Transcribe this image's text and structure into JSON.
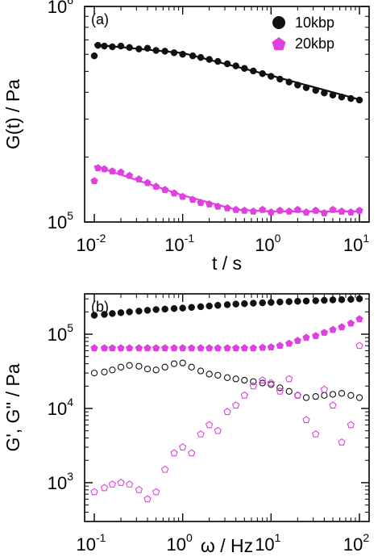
{
  "colors": {
    "series_10kbp": "#111111",
    "series_20kbp": "#e040e0"
  },
  "chart_data": [
    {
      "type": "scatter",
      "panel_label": "(a)",
      "xlabel": "t / s",
      "ylabel": "G(t) / Pa",
      "xscale": "log",
      "yscale": "log",
      "xlim": [
        0.01,
        10
      ],
      "ylim": [
        100000,
        1000000
      ],
      "x_ticks": [
        {
          "value": 0.01,
          "base": "10",
          "exp": "-2"
        },
        {
          "value": 0.1,
          "base": "10",
          "exp": "-1"
        },
        {
          "value": 1,
          "base": "10",
          "exp": "0"
        },
        {
          "value": 10,
          "base": "10",
          "exp": "1"
        }
      ],
      "y_ticks": [
        {
          "value": 100000,
          "base": "10",
          "exp": "5"
        },
        {
          "value": 1000000,
          "base": "10",
          "exp": "6"
        }
      ],
      "legend_position": "top-right",
      "grid": false,
      "series": [
        {
          "name": "10kbp",
          "marker": "circle-filled",
          "color": "#111111",
          "x": [
            0.01,
            0.011,
            0.013,
            0.016,
            0.02,
            0.025,
            0.032,
            0.04,
            0.05,
            0.063,
            0.08,
            0.1,
            0.13,
            0.16,
            0.2,
            0.25,
            0.32,
            0.4,
            0.5,
            0.63,
            0.8,
            1.0,
            1.26,
            1.6,
            2.0,
            2.5,
            3.2,
            4.0,
            5.0,
            6.3,
            8.0,
            10.0
          ],
          "y": [
            590000,
            660000,
            655000,
            650000,
            655000,
            645000,
            635000,
            640000,
            625000,
            620000,
            610000,
            600000,
            590000,
            580000,
            568000,
            556000,
            542000,
            530000,
            516000,
            502000,
            488000,
            474000,
            460000,
            446000,
            432000,
            420000,
            408000,
            397000,
            388000,
            380000,
            374000,
            368000
          ],
          "fit_line": {
            "x": [
              0.01,
              0.1,
              1,
              10
            ],
            "y": [
              665000,
              608000,
              478000,
              370000
            ]
          }
        },
        {
          "name": "20kbp",
          "marker": "pentagon-filled",
          "color": "#e040e0",
          "x": [
            0.01,
            0.011,
            0.013,
            0.016,
            0.02,
            0.025,
            0.032,
            0.04,
            0.05,
            0.063,
            0.08,
            0.1,
            0.13,
            0.16,
            0.2,
            0.25,
            0.32,
            0.4,
            0.5,
            0.63,
            0.8,
            1.0,
            1.26,
            1.6,
            2.0,
            2.5,
            3.2,
            4.0,
            5.0,
            6.3,
            8.0,
            10.0
          ],
          "y": [
            155000,
            178000,
            176000,
            172000,
            170000,
            164000,
            158000,
            152000,
            146000,
            141000,
            136000,
            131000,
            127000,
            123000,
            121000,
            118000,
            116000,
            114000,
            113000,
            112000,
            114000,
            111000,
            113000,
            112000,
            114000,
            111000,
            113000,
            110000,
            114000,
            112000,
            111000,
            113000
          ],
          "fit_line": {
            "x": [
              0.01,
              0.1,
              0.4,
              1,
              10
            ],
            "y": [
              182000,
              133000,
              114000,
              112000,
              112000
            ]
          }
        }
      ]
    },
    {
      "type": "scatter",
      "panel_label": "(b)",
      "xlabel": "ω / Hz",
      "ylabel": "G', G'' / Pa",
      "xscale": "log",
      "yscale": "log",
      "xlim": [
        0.1,
        100
      ],
      "ylim": [
        300,
        350000
      ],
      "x_ticks": [
        {
          "value": 0.1,
          "base": "10",
          "exp": "-1"
        },
        {
          "value": 1,
          "base": "10",
          "exp": "0"
        },
        {
          "value": 10,
          "base": "10",
          "exp": "1"
        },
        {
          "value": 100,
          "base": "10",
          "exp": "2"
        }
      ],
      "y_ticks": [
        {
          "value": 1000,
          "base": "10",
          "exp": "3"
        },
        {
          "value": 10000,
          "base": "10",
          "exp": "4"
        },
        {
          "value": 100000,
          "base": "10",
          "exp": "5"
        }
      ],
      "grid": false,
      "series": [
        {
          "marker": "circle-filled",
          "color": "#111111",
          "x": [
            0.1,
            0.13,
            0.16,
            0.2,
            0.25,
            0.32,
            0.4,
            0.5,
            0.63,
            0.8,
            1.0,
            1.26,
            1.6,
            2.0,
            2.5,
            3.2,
            4.0,
            5.0,
            6.3,
            8.0,
            10,
            12.6,
            16,
            20,
            25,
            32,
            40,
            50,
            63,
            80,
            100
          ],
          "y": [
            180000,
            185000,
            190000,
            195000,
            200000,
            205000,
            210000,
            215000,
            218000,
            222000,
            225000,
            230000,
            235000,
            240000,
            245000,
            250000,
            255000,
            258000,
            262000,
            265000,
            268000,
            272000,
            275000,
            278000,
            280000,
            283000,
            286000,
            290000,
            292000,
            295000,
            300000
          ]
        },
        {
          "marker": "circle-open",
          "color": "#111111",
          "x": [
            0.1,
            0.13,
            0.16,
            0.2,
            0.25,
            0.32,
            0.4,
            0.5,
            0.63,
            0.8,
            1.0,
            1.26,
            1.6,
            2.0,
            2.5,
            3.2,
            4.0,
            5.0,
            6.3,
            8.0,
            10,
            12.6,
            16,
            20,
            25,
            32,
            40,
            50,
            63,
            80,
            100
          ],
          "y": [
            30000,
            31000,
            33000,
            36000,
            38000,
            37000,
            34000,
            33000,
            36000,
            40000,
            41000,
            36000,
            32000,
            29000,
            28000,
            26000,
            25000,
            24000,
            23000,
            22000,
            21000,
            19000,
            17000,
            15000,
            14000,
            14500,
            15000,
            15500,
            16000,
            15000,
            14000
          ]
        },
        {
          "name": "20kbp",
          "marker": "pentagon-filled",
          "color": "#e040e0",
          "x": [
            0.1,
            0.13,
            0.16,
            0.2,
            0.25,
            0.32,
            0.4,
            0.5,
            0.63,
            0.8,
            1.0,
            1.26,
            1.6,
            2.0,
            2.5,
            3.2,
            4.0,
            5.0,
            6.3,
            8.0,
            10,
            12.6,
            16,
            20,
            25,
            32,
            40,
            50,
            63,
            80,
            100
          ],
          "y": [
            65000,
            65000,
            65000,
            65000,
            65000,
            65000,
            65000,
            65000,
            65000,
            65000,
            65000,
            65000,
            65000,
            65000,
            65000,
            65000,
            65000,
            65000,
            65000,
            66000,
            67000,
            70000,
            75000,
            82000,
            90000,
            95000,
            105000,
            115000,
            125000,
            140000,
            160000
          ]
        },
        {
          "marker": "pentagon-open",
          "color": "#e040e0",
          "x": [
            0.1,
            0.13,
            0.16,
            0.2,
            0.25,
            0.32,
            0.4,
            0.5,
            0.63,
            0.8,
            1.0,
            1.26,
            1.6,
            2.0,
            2.5,
            3.2,
            4.0,
            5.0,
            6.3,
            8.0,
            10,
            12.6,
            16,
            20,
            25,
            32,
            40,
            50,
            63,
            80,
            100
          ],
          "y": [
            750,
            850,
            950,
            1000,
            950,
            800,
            600,
            750,
            1500,
            2500,
            3000,
            2500,
            4500,
            6000,
            5000,
            9000,
            11000,
            15000,
            20000,
            24000,
            22000,
            17000,
            25000,
            15000,
            7000,
            4500,
            18000,
            11000,
            3500,
            6000,
            70000
          ]
        }
      ]
    }
  ]
}
